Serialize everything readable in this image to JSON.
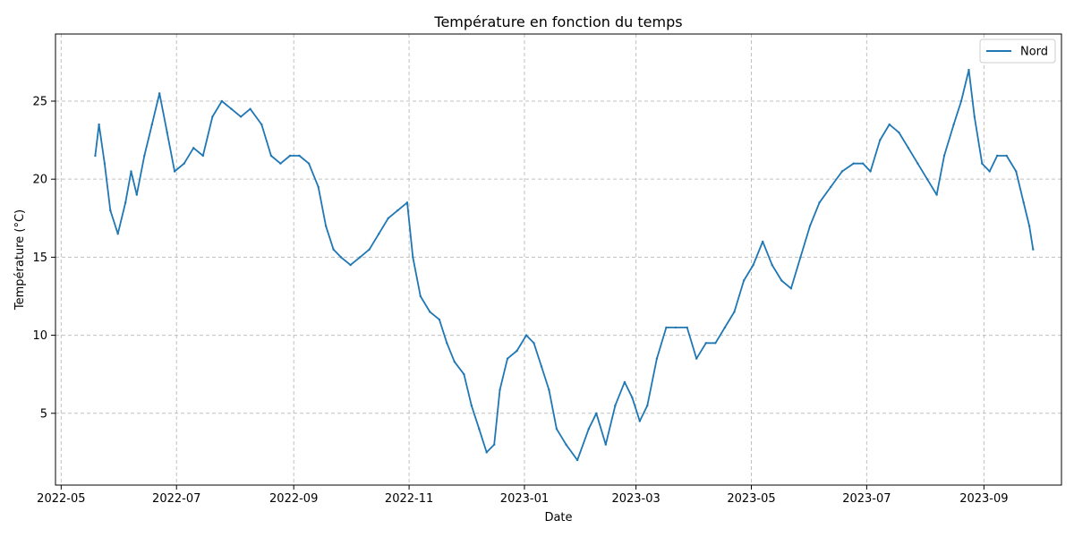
{
  "chart_data": {
    "type": "line",
    "title": "Température en fonction du temps",
    "xlabel": "Date",
    "ylabel": "Température (°C)",
    "grid": true,
    "grid_style": "dashed",
    "legend_position": "top-right",
    "xlim": [
      "2022-04-28",
      "2023-10-12"
    ],
    "ylim": [
      0.4,
      29.3
    ],
    "x_ticks": [
      "2022-05",
      "2022-07",
      "2022-09",
      "2022-11",
      "2023-01",
      "2023-03",
      "2023-05",
      "2023-07",
      "2023-09"
    ],
    "y_ticks": [
      5,
      10,
      15,
      20,
      25
    ],
    "series": [
      {
        "name": "Nord",
        "color": "#1f77b4",
        "points": [
          [
            "2022-05-19",
            21.5
          ],
          [
            "2022-05-21",
            23.5
          ],
          [
            "2022-05-24",
            21.0
          ],
          [
            "2022-05-27",
            18.0
          ],
          [
            "2022-05-31",
            16.5
          ],
          [
            "2022-06-04",
            18.5
          ],
          [
            "2022-06-07",
            20.5
          ],
          [
            "2022-06-10",
            19.0
          ],
          [
            "2022-06-14",
            21.5
          ],
          [
            "2022-06-18",
            23.5
          ],
          [
            "2022-06-22",
            25.5
          ],
          [
            "2022-06-26",
            23.0
          ],
          [
            "2022-06-30",
            20.5
          ],
          [
            "2022-07-05",
            21.0
          ],
          [
            "2022-07-10",
            22.0
          ],
          [
            "2022-07-15",
            21.5
          ],
          [
            "2022-07-20",
            24.0
          ],
          [
            "2022-07-25",
            25.0
          ],
          [
            "2022-07-30",
            24.5
          ],
          [
            "2022-08-04",
            24.0
          ],
          [
            "2022-08-09",
            24.5
          ],
          [
            "2022-08-15",
            23.5
          ],
          [
            "2022-08-20",
            21.5
          ],
          [
            "2022-08-25",
            21.0
          ],
          [
            "2022-08-30",
            21.5
          ],
          [
            "2022-09-04",
            21.5
          ],
          [
            "2022-09-09",
            21.0
          ],
          [
            "2022-09-14",
            19.5
          ],
          [
            "2022-09-18",
            17.0
          ],
          [
            "2022-09-22",
            15.5
          ],
          [
            "2022-09-26",
            15.0
          ],
          [
            "2022-10-01",
            14.5
          ],
          [
            "2022-10-06",
            15.0
          ],
          [
            "2022-10-11",
            15.5
          ],
          [
            "2022-10-16",
            16.5
          ],
          [
            "2022-10-21",
            17.5
          ],
          [
            "2022-10-26",
            18.0
          ],
          [
            "2022-10-31",
            18.5
          ],
          [
            "2022-11-03",
            15.0
          ],
          [
            "2022-11-07",
            12.5
          ],
          [
            "2022-11-12",
            11.5
          ],
          [
            "2022-11-17",
            11.0
          ],
          [
            "2022-11-21",
            9.5
          ],
          [
            "2022-11-25",
            8.3
          ],
          [
            "2022-11-30",
            7.5
          ],
          [
            "2022-12-04",
            5.5
          ],
          [
            "2022-12-08",
            4.0
          ],
          [
            "2022-12-12",
            2.5
          ],
          [
            "2022-12-16",
            3.0
          ],
          [
            "2022-12-19",
            6.5
          ],
          [
            "2022-12-23",
            8.5
          ],
          [
            "2022-12-28",
            9.0
          ],
          [
            "2023-01-02",
            10.0
          ],
          [
            "2023-01-06",
            9.5
          ],
          [
            "2023-01-10",
            8.0
          ],
          [
            "2023-01-14",
            6.5
          ],
          [
            "2023-01-18",
            4.0
          ],
          [
            "2023-01-23",
            3.0
          ],
          [
            "2023-01-29",
            2.0
          ],
          [
            "2023-02-04",
            4.0
          ],
          [
            "2023-02-08",
            5.0
          ],
          [
            "2023-02-13",
            3.0
          ],
          [
            "2023-02-18",
            5.5
          ],
          [
            "2023-02-23",
            7.0
          ],
          [
            "2023-02-27",
            6.0
          ],
          [
            "2023-03-03",
            4.5
          ],
          [
            "2023-03-07",
            5.5
          ],
          [
            "2023-03-12",
            8.5
          ],
          [
            "2023-03-17",
            10.5
          ],
          [
            "2023-03-22",
            10.5
          ],
          [
            "2023-03-28",
            10.5
          ],
          [
            "2023-04-02",
            8.5
          ],
          [
            "2023-04-07",
            9.5
          ],
          [
            "2023-04-12",
            9.5
          ],
          [
            "2023-04-17",
            10.5
          ],
          [
            "2023-04-22",
            11.5
          ],
          [
            "2023-04-27",
            13.5
          ],
          [
            "2023-05-02",
            14.5
          ],
          [
            "2023-05-07",
            16.0
          ],
          [
            "2023-05-12",
            14.5
          ],
          [
            "2023-05-17",
            13.5
          ],
          [
            "2023-05-22",
            13.0
          ],
          [
            "2023-05-27",
            15.0
          ],
          [
            "2023-06-01",
            17.0
          ],
          [
            "2023-06-06",
            18.5
          ],
          [
            "2023-06-12",
            19.5
          ],
          [
            "2023-06-18",
            20.5
          ],
          [
            "2023-06-24",
            21.0
          ],
          [
            "2023-06-29",
            21.0
          ],
          [
            "2023-07-03",
            20.5
          ],
          [
            "2023-07-08",
            22.5
          ],
          [
            "2023-07-13",
            23.5
          ],
          [
            "2023-07-18",
            23.0
          ],
          [
            "2023-07-23",
            22.0
          ],
          [
            "2023-07-28",
            21.0
          ],
          [
            "2023-08-02",
            20.0
          ],
          [
            "2023-08-07",
            19.0
          ],
          [
            "2023-08-11",
            21.5
          ],
          [
            "2023-08-16",
            23.5
          ],
          [
            "2023-08-20",
            25.0
          ],
          [
            "2023-08-24",
            27.0
          ],
          [
            "2023-08-27",
            24.0
          ],
          [
            "2023-08-31",
            21.0
          ],
          [
            "2023-09-04",
            20.5
          ],
          [
            "2023-09-08",
            21.5
          ],
          [
            "2023-09-13",
            21.5
          ],
          [
            "2023-09-18",
            20.5
          ],
          [
            "2023-09-22",
            18.5
          ],
          [
            "2023-09-25",
            17.0
          ],
          [
            "2023-09-27",
            15.5
          ]
        ]
      }
    ]
  }
}
